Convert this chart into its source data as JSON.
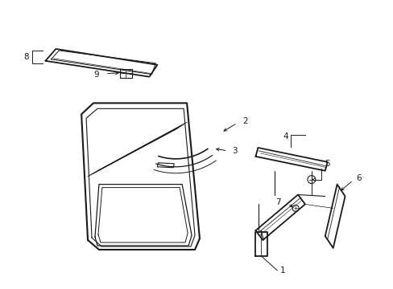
{
  "background": "#ffffff",
  "line_color": "#1a1a1a",
  "fig_width": 4.89,
  "fig_height": 3.6,
  "dpi": 100
}
